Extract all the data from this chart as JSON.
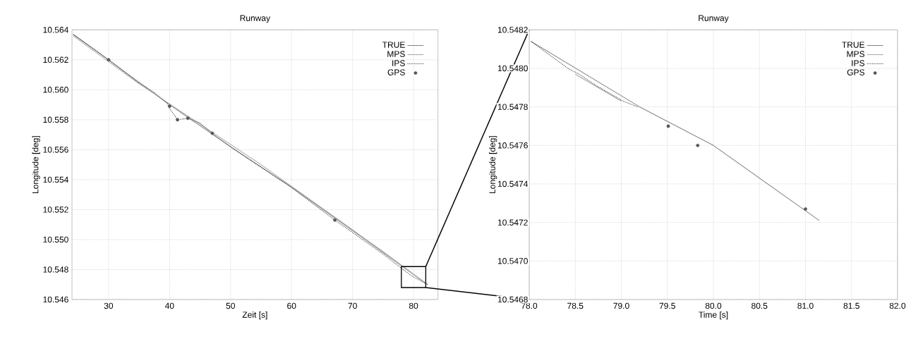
{
  "chart_data": [
    {
      "type": "line",
      "title": "Runway",
      "xlabel": "Zeit [s]",
      "ylabel": "Longitude [deg]",
      "xlim": [
        24,
        84
      ],
      "ylim": [
        10.546,
        10.564
      ],
      "xticks": [
        30,
        40,
        50,
        60,
        70,
        80
      ],
      "yticks": [
        {
          "value": 10.546,
          "label": "10.546"
        },
        {
          "value": 10.548,
          "label": "10.548"
        },
        {
          "value": 10.55,
          "label": "10.550"
        },
        {
          "value": 10.552,
          "label": "10.552"
        },
        {
          "value": 10.554,
          "label": "10.554"
        },
        {
          "value": 10.556,
          "label": "10.556"
        },
        {
          "value": 10.558,
          "label": "10.558"
        },
        {
          "value": 10.56,
          "label": "10.560"
        },
        {
          "value": 10.562,
          "label": "10.562"
        },
        {
          "value": 10.564,
          "label": "10.564"
        }
      ],
      "grid": true,
      "legend": "top right",
      "series": [
        {
          "name": "TRUE",
          "color": "#888888",
          "line_style": "solid",
          "x": [
            24.2,
            30,
            40,
            50,
            60,
            70,
            82.3
          ],
          "values": [
            10.5637,
            10.562,
            10.559,
            10.5562,
            10.5535,
            10.5506,
            10.547
          ]
        },
        {
          "name": "MPS",
          "color": "#aaaaaa",
          "line_style": "solid",
          "x": [
            24.2,
            35,
            45,
            55,
            65,
            75,
            82.3
          ],
          "values": [
            10.5636,
            10.5604,
            10.5577,
            10.555,
            10.5521,
            10.5492,
            10.547
          ]
        },
        {
          "name": "IPS",
          "color": "#333333",
          "line_style": "dotted",
          "x": [
            24.2,
            30,
            34.8,
            37.2,
            39.6,
            40.1,
            41.3,
            43.0,
            44.9,
            46.9,
            50.3,
            53.6,
            59.9,
            67.1,
            74.8,
            79.6,
            82.3
          ],
          "values": [
            10.5637,
            10.562,
            10.5605,
            10.5599,
            10.5591,
            10.5587,
            10.558,
            10.5581,
            10.5578,
            10.5571,
            10.5561,
            10.5552,
            10.5535,
            10.5513,
            10.5491,
            10.5476,
            10.547
          ]
        },
        {
          "name": "GPS",
          "type": "scatter",
          "color": "#555555",
          "x": [
            30,
            40,
            41.3,
            43.0,
            47,
            67.1
          ],
          "values": [
            10.562,
            10.5589,
            10.558,
            10.5581,
            10.5571,
            10.5513
          ]
        }
      ]
    },
    {
      "type": "line",
      "title": "Runway",
      "xlabel": "Time [s]",
      "ylabel": "Longitude [deg]",
      "xlim": [
        78,
        82
      ],
      "ylim": [
        10.5468,
        10.5482
      ],
      "xticks": [
        {
          "value": 78,
          "label": "78.0"
        },
        {
          "value": 78.5,
          "label": "78.5"
        },
        {
          "value": 79,
          "label": "79.0"
        },
        {
          "value": 79.5,
          "label": "79.5"
        },
        {
          "value": 80,
          "label": "80.0"
        },
        {
          "value": 80.5,
          "label": "80.5"
        },
        {
          "value": 81,
          "label": "81.0"
        },
        {
          "value": 81.5,
          "label": "81.5"
        },
        {
          "value": 82,
          "label": "82.0"
        }
      ],
      "yticks": [
        {
          "value": 10.5468,
          "label": "10.5468"
        },
        {
          "value": 10.547,
          "label": "10.5470"
        },
        {
          "value": 10.5472,
          "label": "10.5472"
        },
        {
          "value": 10.5474,
          "label": "10.5474"
        },
        {
          "value": 10.5476,
          "label": "10.5476"
        },
        {
          "value": 10.5478,
          "label": "10.5478"
        },
        {
          "value": 10.548,
          "label": "10.5480"
        },
        {
          "value": 10.5482,
          "label": "10.5482"
        }
      ],
      "grid": true,
      "legend": "top right",
      "series": [
        {
          "name": "TRUE",
          "color": "#888888",
          "line_style": "solid",
          "x": [
            78.02,
            79.2,
            80.0,
            81.15
          ],
          "values": [
            10.54814,
            10.5478,
            10.5476,
            10.54721
          ]
        },
        {
          "name": "MPS",
          "color": "#aaaaaa",
          "line_style": "solid",
          "x": [
            78.5,
            79.0
          ],
          "values": [
            10.54797,
            10.54783
          ]
        },
        {
          "name": "IPS",
          "color": "#333333",
          "line_style": "dotted",
          "x": [
            78.02,
            78.42,
            78.54,
            78.73,
            79.02,
            79.18
          ],
          "values": [
            10.54814,
            10.548,
            10.54797,
            10.54791,
            10.54783,
            10.5478
          ]
        },
        {
          "name": "GPS",
          "type": "scatter",
          "color": "#555555",
          "x": [
            79.51,
            79.83,
            81.0
          ],
          "values": [
            10.5477,
            10.5476,
            10.54727
          ]
        }
      ]
    }
  ]
}
